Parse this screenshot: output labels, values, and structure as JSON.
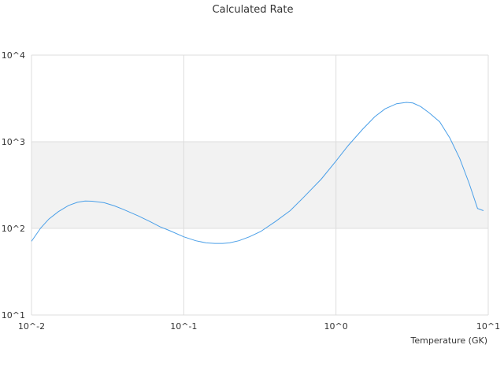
{
  "chart_data": {
    "type": "line",
    "title": "Calculated Rate",
    "xlabel": "Temperature (GK)",
    "ylabel": "",
    "x_scale": "log",
    "y_scale": "log",
    "xlim": [
      0.01,
      10
    ],
    "ylim": [
      10,
      10000
    ],
    "x_ticks": [
      0.01,
      0.1,
      1,
      10
    ],
    "x_tick_labels": [
      "10^-2",
      "10^-1",
      "10^0",
      "10^1"
    ],
    "y_ticks": [
      10,
      100,
      1000,
      10000
    ],
    "y_tick_labels": [
      "10^1",
      "10^2",
      "10^3",
      "10^4"
    ],
    "alternate_band_shading": true,
    "grid": true,
    "legend": "none",
    "series": [
      {
        "color": "#4a9fe8",
        "x": [
          0.01,
          0.0115,
          0.013,
          0.015,
          0.0175,
          0.02,
          0.0225,
          0.025,
          0.03,
          0.035,
          0.04,
          0.05,
          0.06,
          0.07,
          0.08,
          0.1,
          0.12,
          0.14,
          0.16,
          0.18,
          0.2,
          0.23,
          0.27,
          0.32,
          0.4,
          0.5,
          0.6,
          0.8,
          1.0,
          1.2,
          1.5,
          1.8,
          2.1,
          2.5,
          2.9,
          3.2,
          3.6,
          4.1,
          4.8,
          5.6,
          6.5,
          7.5,
          8.5,
          9.3
        ],
        "y": [
          71,
          101,
          128,
          156,
          184,
          200,
          207,
          206,
          198,
          182,
          166,
          140,
          120,
          104,
          95,
          80,
          72,
          68,
          67,
          67,
          68,
          72,
          80,
          92,
          120,
          160,
          220,
          370,
          600,
          900,
          1400,
          1950,
          2400,
          2750,
          2850,
          2800,
          2550,
          2150,
          1700,
          1100,
          640,
          330,
          170,
          160
        ]
      }
    ]
  }
}
